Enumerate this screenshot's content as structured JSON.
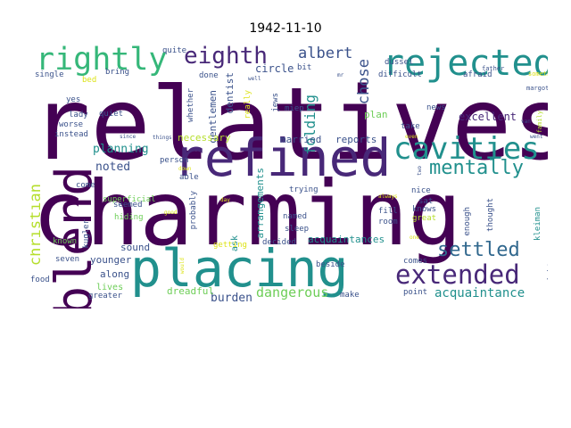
{
  "title": "1942-11-10",
  "colors": {
    "dark_purple": "#440154",
    "indigo": "#482878",
    "blue": "#3b528b",
    "steel": "#31688e",
    "teal": "#21908d",
    "green": "#35b779",
    "lime": "#6ece58",
    "yellow": "#b5de2b",
    "bright_yellow": "#dde318"
  },
  "words": [
    {
      "t": "relatives",
      "c": "dark_purple"
    },
    {
      "t": "charming",
      "c": "dark_purple"
    },
    {
      "t": "refined",
      "c": "indigo"
    },
    {
      "t": "placing",
      "c": "teal"
    },
    {
      "t": "blend",
      "c": "dark_purple"
    },
    {
      "t": "rejected",
      "c": "teal"
    },
    {
      "t": "cavities",
      "c": "teal"
    },
    {
      "t": "rightly",
      "c": "green"
    },
    {
      "t": "eighth",
      "c": "indigo"
    },
    {
      "t": "extended",
      "c": "indigo"
    },
    {
      "t": "mentally",
      "c": "teal"
    },
    {
      "t": "settled",
      "c": "steel"
    },
    {
      "t": "christian",
      "c": "yellow"
    },
    {
      "t": "albert",
      "c": "blue"
    },
    {
      "t": "chose",
      "c": "blue"
    },
    {
      "t": "folding",
      "c": "teal"
    },
    {
      "t": "acquaintance",
      "c": "teal"
    },
    {
      "t": "dangerous",
      "c": "lime"
    },
    {
      "t": "burden",
      "c": "blue"
    },
    {
      "t": "planning",
      "c": "teal"
    },
    {
      "t": "noted",
      "c": "blue"
    },
    {
      "t": "excellent",
      "c": "indigo"
    },
    {
      "t": "circle",
      "c": "blue"
    },
    {
      "t": "dentist",
      "c": "blue"
    },
    {
      "t": "gentlemen",
      "c": "blue"
    },
    {
      "t": "necessary",
      "c": "yellow"
    },
    {
      "t": "arrangements",
      "c": "teal"
    },
    {
      "t": "acquaintances",
      "c": "teal"
    },
    {
      "t": "married",
      "c": "blue"
    },
    {
      "t": "reports",
      "c": "blue"
    },
    {
      "t": "plan",
      "c": "lime"
    },
    {
      "t": "younger",
      "c": "blue"
    },
    {
      "t": "along",
      "c": "blue"
    },
    {
      "t": "sound",
      "c": "blue"
    },
    {
      "t": "dreadful",
      "c": "lime"
    },
    {
      "t": "lives",
      "c": "lime"
    },
    {
      "t": "ask",
      "c": "teal"
    },
    {
      "t": "decided",
      "c": "blue"
    },
    {
      "t": "sleep",
      "c": "blue"
    },
    {
      "t": "named",
      "c": "blue"
    },
    {
      "t": "trying",
      "c": "blue"
    },
    {
      "t": "room",
      "c": "blue"
    },
    {
      "t": "fill",
      "c": "blue"
    },
    {
      "t": "nice",
      "c": "blue"
    },
    {
      "t": "sat",
      "c": "blue"
    },
    {
      "t": "knows",
      "c": "blue"
    },
    {
      "t": "great",
      "c": "yellow"
    },
    {
      "t": "enough",
      "c": "blue"
    },
    {
      "t": "thought",
      "c": "blue"
    },
    {
      "t": "kleiman",
      "c": "teal"
    },
    {
      "t": "eight",
      "c": "blue"
    },
    {
      "t": "dussel",
      "c": "blue"
    },
    {
      "t": "difficult",
      "c": "blue"
    },
    {
      "t": "afraid",
      "c": "blue"
    },
    {
      "t": "take",
      "c": "blue"
    },
    {
      "t": "news",
      "c": "blue"
    },
    {
      "t": "miep",
      "c": "blue"
    },
    {
      "t": "jews",
      "c": "blue"
    },
    {
      "t": "bit",
      "c": "blue"
    },
    {
      "t": "done",
      "c": "blue"
    },
    {
      "t": "quite",
      "c": "blue"
    },
    {
      "t": "bring",
      "c": "blue"
    },
    {
      "t": "single",
      "c": "blue"
    },
    {
      "t": "bed",
      "c": "bright_yellow"
    },
    {
      "t": "yes",
      "c": "blue"
    },
    {
      "t": "lady",
      "c": "blue"
    },
    {
      "t": "worse",
      "c": "blue"
    },
    {
      "t": "instead",
      "c": "blue"
    },
    {
      "t": "quiet",
      "c": "blue"
    },
    {
      "t": "whether",
      "c": "blue"
    },
    {
      "t": "really",
      "c": "bright_yellow"
    },
    {
      "t": "person",
      "c": "blue"
    },
    {
      "t": "kugler",
      "c": "blue"
    },
    {
      "t": "superficial",
      "c": "lime"
    },
    {
      "t": "come",
      "c": "blue"
    },
    {
      "t": "seemed",
      "c": "blue"
    },
    {
      "t": "hiding",
      "c": "lime"
    },
    {
      "t": "probably",
      "c": "blue"
    },
    {
      "t": "able",
      "c": "blue"
    },
    {
      "t": "getting",
      "c": "bright_yellow"
    },
    {
      "t": "known",
      "c": "lime"
    },
    {
      "t": "seven",
      "c": "blue"
    },
    {
      "t": "food",
      "c": "blue"
    },
    {
      "t": "greater",
      "c": "blue"
    },
    {
      "t": "beside",
      "c": "blue"
    },
    {
      "t": "make",
      "c": "blue"
    },
    {
      "t": "point",
      "c": "blue"
    },
    {
      "t": "comes",
      "c": "blue"
    },
    {
      "t": "father",
      "c": "blue"
    },
    {
      "t": "something",
      "c": "bright_yellow"
    },
    {
      "t": "margot",
      "c": "blue"
    },
    {
      "t": "family",
      "c": "yellow"
    },
    {
      "t": "went",
      "c": "blue"
    },
    {
      "t": "always",
      "c": "bright_yellow"
    },
    {
      "t": "since",
      "c": "blue"
    },
    {
      "t": "things",
      "c": "blue"
    },
    {
      "t": "day",
      "c": "bright_yellow"
    },
    {
      "t": "van",
      "c": "blue"
    },
    {
      "t": "well",
      "c": "blue"
    },
    {
      "t": "mr",
      "c": "blue"
    },
    {
      "t": "even",
      "c": "bright_yellow"
    },
    {
      "t": "one",
      "c": "bright_yellow"
    },
    {
      "t": "two",
      "c": "blue"
    },
    {
      "t": "would",
      "c": "bright_yellow"
    },
    {
      "t": "down",
      "c": "bright_yellow"
    },
    {
      "t": "good",
      "c": "bright_yellow"
    }
  ]
}
